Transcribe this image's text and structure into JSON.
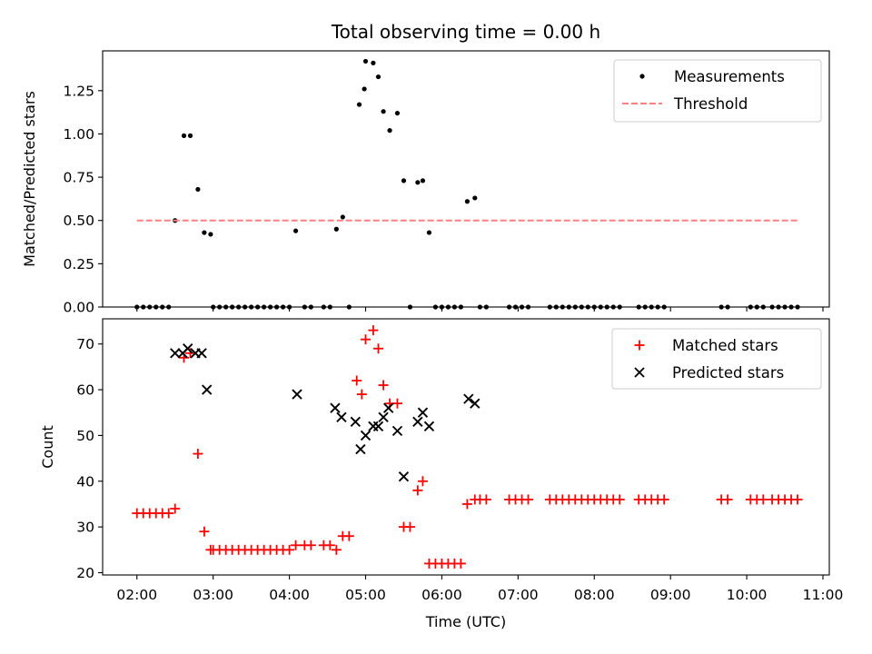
{
  "chart_data": [
    {
      "type": "scatter",
      "title": "Total observing time = 0.00 h",
      "xlabel": "",
      "ylabel": "Matched/Predicted stars",
      "xlim": [
        "01:33",
        "11:05"
      ],
      "ylim": [
        0,
        1.48
      ],
      "yticks": [
        0.0,
        0.25,
        0.5,
        0.75,
        1.0,
        1.25
      ],
      "ytick_labels": [
        "0.00",
        "0.25",
        "0.50",
        "0.75",
        "1.00",
        "1.25"
      ],
      "legend_position": "upper right",
      "series": [
        {
          "name": "Measurements",
          "marker": "dot",
          "color": "#000000",
          "points": [
            [
              "02:00",
              0.0
            ],
            [
              "02:05",
              0.0
            ],
            [
              "02:10",
              0.0
            ],
            [
              "02:15",
              0.0
            ],
            [
              "02:20",
              0.0
            ],
            [
              "02:25",
              0.0
            ],
            [
              "02:30",
              0.5
            ],
            [
              "02:37",
              0.99
            ],
            [
              "02:42",
              0.99
            ],
            [
              "02:48",
              0.68
            ],
            [
              "02:53",
              0.43
            ],
            [
              "02:58",
              0.42
            ],
            [
              "03:00",
              0.0
            ],
            [
              "03:05",
              0.0
            ],
            [
              "03:10",
              0.0
            ],
            [
              "03:15",
              0.0
            ],
            [
              "03:20",
              0.0
            ],
            [
              "03:25",
              0.0
            ],
            [
              "03:30",
              0.0
            ],
            [
              "03:35",
              0.0
            ],
            [
              "03:40",
              0.0
            ],
            [
              "03:45",
              0.0
            ],
            [
              "03:50",
              0.0
            ],
            [
              "03:55",
              0.0
            ],
            [
              "04:00",
              0.0
            ],
            [
              "04:05",
              0.44
            ],
            [
              "04:12",
              0.0
            ],
            [
              "04:17",
              0.0
            ],
            [
              "04:27",
              0.0
            ],
            [
              "04:32",
              0.0
            ],
            [
              "04:37",
              0.45
            ],
            [
              "04:42",
              0.52
            ],
            [
              "04:47",
              0.0
            ],
            [
              "04:55",
              1.17
            ],
            [
              "04:59",
              1.26
            ],
            [
              "05:00",
              1.42
            ],
            [
              "05:06",
              1.41
            ],
            [
              "05:10",
              1.33
            ],
            [
              "05:14",
              1.13
            ],
            [
              "05:19",
              1.02
            ],
            [
              "05:25",
              1.12
            ],
            [
              "05:30",
              0.73
            ],
            [
              "05:35",
              0.0
            ],
            [
              "05:41",
              0.72
            ],
            [
              "05:45",
              0.73
            ],
            [
              "05:50",
              0.43
            ],
            [
              "05:55",
              0.0
            ],
            [
              "06:00",
              0.0
            ],
            [
              "06:05",
              0.0
            ],
            [
              "06:10",
              0.0
            ],
            [
              "06:15",
              0.0
            ],
            [
              "06:20",
              0.61
            ],
            [
              "06:26",
              0.63
            ],
            [
              "06:30",
              0.0
            ],
            [
              "06:35",
              0.0
            ],
            [
              "06:53",
              0.0
            ],
            [
              "06:58",
              0.0
            ],
            [
              "07:03",
              0.0
            ],
            [
              "07:08",
              0.0
            ],
            [
              "07:25",
              0.0
            ],
            [
              "07:30",
              0.0
            ],
            [
              "07:35",
              0.0
            ],
            [
              "07:40",
              0.0
            ],
            [
              "07:45",
              0.0
            ],
            [
              "07:50",
              0.0
            ],
            [
              "07:55",
              0.0
            ],
            [
              "08:00",
              0.0
            ],
            [
              "08:05",
              0.0
            ],
            [
              "08:10",
              0.0
            ],
            [
              "08:15",
              0.0
            ],
            [
              "08:20",
              0.0
            ],
            [
              "08:35",
              0.0
            ],
            [
              "08:40",
              0.0
            ],
            [
              "08:45",
              0.0
            ],
            [
              "08:50",
              0.0
            ],
            [
              "08:55",
              0.0
            ],
            [
              "09:40",
              0.0
            ],
            [
              "09:45",
              0.0
            ],
            [
              "10:03",
              0.0
            ],
            [
              "10:08",
              0.0
            ],
            [
              "10:13",
              0.0
            ],
            [
              "10:20",
              0.0
            ],
            [
              "10:25",
              0.0
            ],
            [
              "10:30",
              0.0
            ],
            [
              "10:35",
              0.0
            ],
            [
              "10:40",
              0.0
            ]
          ]
        },
        {
          "name": "Threshold",
          "style": "dashed",
          "color": "#ff8080",
          "points": [
            [
              "02:00",
              0.5
            ],
            [
              "10:40",
              0.5
            ]
          ]
        }
      ]
    },
    {
      "type": "scatter",
      "title": "",
      "xlabel": "Time (UTC)",
      "ylabel": "Count",
      "xlim": [
        "01:33",
        "11:05"
      ],
      "ylim": [
        19.5,
        75.5
      ],
      "yticks": [
        20,
        30,
        40,
        50,
        60,
        70
      ],
      "ytick_labels": [
        "20",
        "30",
        "40",
        "50",
        "60",
        "70"
      ],
      "xticks": [
        "02:00",
        "03:00",
        "04:00",
        "05:00",
        "06:00",
        "07:00",
        "08:00",
        "09:00",
        "10:00",
        "11:00"
      ],
      "legend_position": "upper right",
      "series": [
        {
          "name": "Matched stars",
          "marker": "plus",
          "color": "#ff0000",
          "points": [
            [
              "02:00",
              33
            ],
            [
              "02:05",
              33
            ],
            [
              "02:10",
              33
            ],
            [
              "02:15",
              33
            ],
            [
              "02:20",
              33
            ],
            [
              "02:25",
              33
            ],
            [
              "02:30",
              34
            ],
            [
              "02:37",
              67
            ],
            [
              "02:42",
              68
            ],
            [
              "02:48",
              46
            ],
            [
              "02:53",
              29
            ],
            [
              "02:58",
              25
            ],
            [
              "03:00",
              25
            ],
            [
              "03:05",
              25
            ],
            [
              "03:10",
              25
            ],
            [
              "03:15",
              25
            ],
            [
              "03:20",
              25
            ],
            [
              "03:25",
              25
            ],
            [
              "03:30",
              25
            ],
            [
              "03:35",
              25
            ],
            [
              "03:40",
              25
            ],
            [
              "03:45",
              25
            ],
            [
              "03:50",
              25
            ],
            [
              "03:55",
              25
            ],
            [
              "04:00",
              25
            ],
            [
              "04:05",
              26
            ],
            [
              "04:12",
              26
            ],
            [
              "04:17",
              26
            ],
            [
              "04:27",
              26
            ],
            [
              "04:32",
              26
            ],
            [
              "04:37",
              25
            ],
            [
              "04:42",
              28
            ],
            [
              "04:47",
              28
            ],
            [
              "04:53",
              62
            ],
            [
              "04:57",
              59
            ],
            [
              "05:00",
              71
            ],
            [
              "05:06",
              73
            ],
            [
              "05:10",
              69
            ],
            [
              "05:14",
              61
            ],
            [
              "05:19",
              57
            ],
            [
              "05:25",
              57
            ],
            [
              "05:30",
              30
            ],
            [
              "05:35",
              30
            ],
            [
              "05:41",
              38
            ],
            [
              "05:45",
              40
            ],
            [
              "05:50",
              22
            ],
            [
              "05:55",
              22
            ],
            [
              "06:00",
              22
            ],
            [
              "06:05",
              22
            ],
            [
              "06:10",
              22
            ],
            [
              "06:15",
              22
            ],
            [
              "06:20",
              35
            ],
            [
              "06:26",
              36
            ],
            [
              "06:30",
              36
            ],
            [
              "06:35",
              36
            ],
            [
              "06:53",
              36
            ],
            [
              "06:58",
              36
            ],
            [
              "07:03",
              36
            ],
            [
              "07:08",
              36
            ],
            [
              "07:25",
              36
            ],
            [
              "07:30",
              36
            ],
            [
              "07:35",
              36
            ],
            [
              "07:40",
              36
            ],
            [
              "07:45",
              36
            ],
            [
              "07:50",
              36
            ],
            [
              "07:55",
              36
            ],
            [
              "08:00",
              36
            ],
            [
              "08:05",
              36
            ],
            [
              "08:10",
              36
            ],
            [
              "08:15",
              36
            ],
            [
              "08:20",
              36
            ],
            [
              "08:35",
              36
            ],
            [
              "08:40",
              36
            ],
            [
              "08:45",
              36
            ],
            [
              "08:50",
              36
            ],
            [
              "08:55",
              36
            ],
            [
              "09:40",
              36
            ],
            [
              "09:45",
              36
            ],
            [
              "10:03",
              36
            ],
            [
              "10:08",
              36
            ],
            [
              "10:13",
              36
            ],
            [
              "10:20",
              36
            ],
            [
              "10:25",
              36
            ],
            [
              "10:30",
              36
            ],
            [
              "10:35",
              36
            ],
            [
              "10:40",
              36
            ]
          ]
        },
        {
          "name": "Predicted stars",
          "marker": "x",
          "color": "#000000",
          "points": [
            [
              "02:30",
              68
            ],
            [
              "02:36",
              68
            ],
            [
              "02:40",
              69
            ],
            [
              "02:46",
              68
            ],
            [
              "02:51",
              68
            ],
            [
              "02:55",
              60
            ],
            [
              "04:06",
              59
            ],
            [
              "04:36",
              56
            ],
            [
              "04:41",
              54
            ],
            [
              "04:52",
              53
            ],
            [
              "04:56",
              47
            ],
            [
              "05:00",
              50
            ],
            [
              "05:06",
              52
            ],
            [
              "05:10",
              52
            ],
            [
              "05:14",
              54
            ],
            [
              "05:18",
              56
            ],
            [
              "05:25",
              51
            ],
            [
              "05:30",
              41
            ],
            [
              "05:41",
              53
            ],
            [
              "05:45",
              55
            ],
            [
              "05:50",
              52
            ],
            [
              "06:21",
              58
            ],
            [
              "06:26",
              57
            ]
          ]
        }
      ]
    }
  ]
}
